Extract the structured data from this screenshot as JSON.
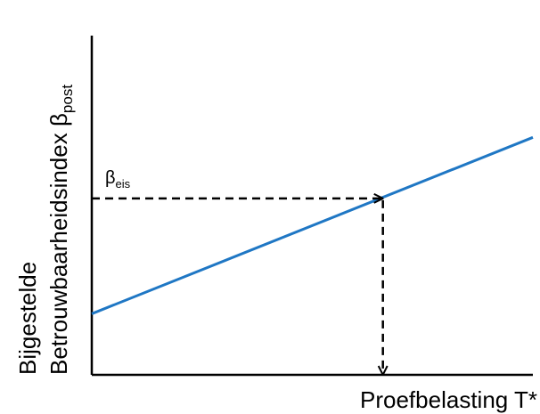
{
  "chart_data": {
    "type": "line",
    "title": "",
    "xlabel": "Proefbelasting T*",
    "ylabel_line1": "Bijgestelde",
    "ylabel_line2_main": "Betrouwbaarheidsindex β",
    "ylabel_line2_sub": "post",
    "xlim": [
      0,
      1
    ],
    "ylim": [
      0,
      1
    ],
    "grid": false,
    "legend": "none",
    "series": [
      {
        "color": "#1f77c4",
        "x": [
          0,
          1
        ],
        "y": [
          0.18,
          0.7
        ]
      }
    ],
    "annotation": {
      "label_main": "β",
      "label_sub": "eis",
      "x": 0.66,
      "y": 0.52,
      "line_style": "dashed",
      "arrow_color": "#000000"
    }
  }
}
